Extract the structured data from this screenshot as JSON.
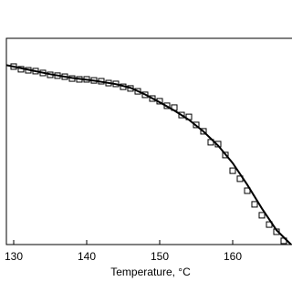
{
  "chart_data": {
    "type": "scatter",
    "xlabel": "Temperature, °C",
    "xlim": [
      129,
      168.3
    ],
    "xticks": [
      130,
      140,
      150,
      160
    ],
    "ylim": [
      0,
      1
    ],
    "series": [
      {
        "style": "markers",
        "color": "#000000",
        "x": [
          130,
          131,
          132,
          133,
          134,
          135,
          136,
          137,
          138,
          139,
          140,
          141,
          142,
          143,
          144,
          145,
          146,
          147,
          148,
          149,
          150,
          151,
          152,
          153,
          154,
          155,
          156,
          157,
          158,
          159,
          160,
          161,
          162,
          163,
          164,
          165,
          166,
          167
        ],
        "values": [
          0.863,
          0.85,
          0.845,
          0.841,
          0.832,
          0.823,
          0.819,
          0.814,
          0.805,
          0.801,
          0.801,
          0.796,
          0.792,
          0.783,
          0.779,
          0.765,
          0.757,
          0.743,
          0.726,
          0.708,
          0.695,
          0.673,
          0.664,
          0.628,
          0.619,
          0.58,
          0.549,
          0.496,
          0.487,
          0.434,
          0.358,
          0.319,
          0.261,
          0.195,
          0.142,
          0.097,
          0.062,
          0.018
        ]
      },
      {
        "style": "line",
        "color": "#000000",
        "x": [
          129,
          132,
          135,
          138,
          141,
          144,
          146,
          148,
          150,
          152,
          154,
          156,
          158,
          160,
          162,
          164,
          166,
          168
        ],
        "values": [
          0.87,
          0.848,
          0.826,
          0.808,
          0.795,
          0.778,
          0.76,
          0.728,
          0.69,
          0.65,
          0.605,
          0.548,
          0.48,
          0.395,
          0.29,
          0.175,
          0.07,
          0.0
        ]
      }
    ]
  }
}
